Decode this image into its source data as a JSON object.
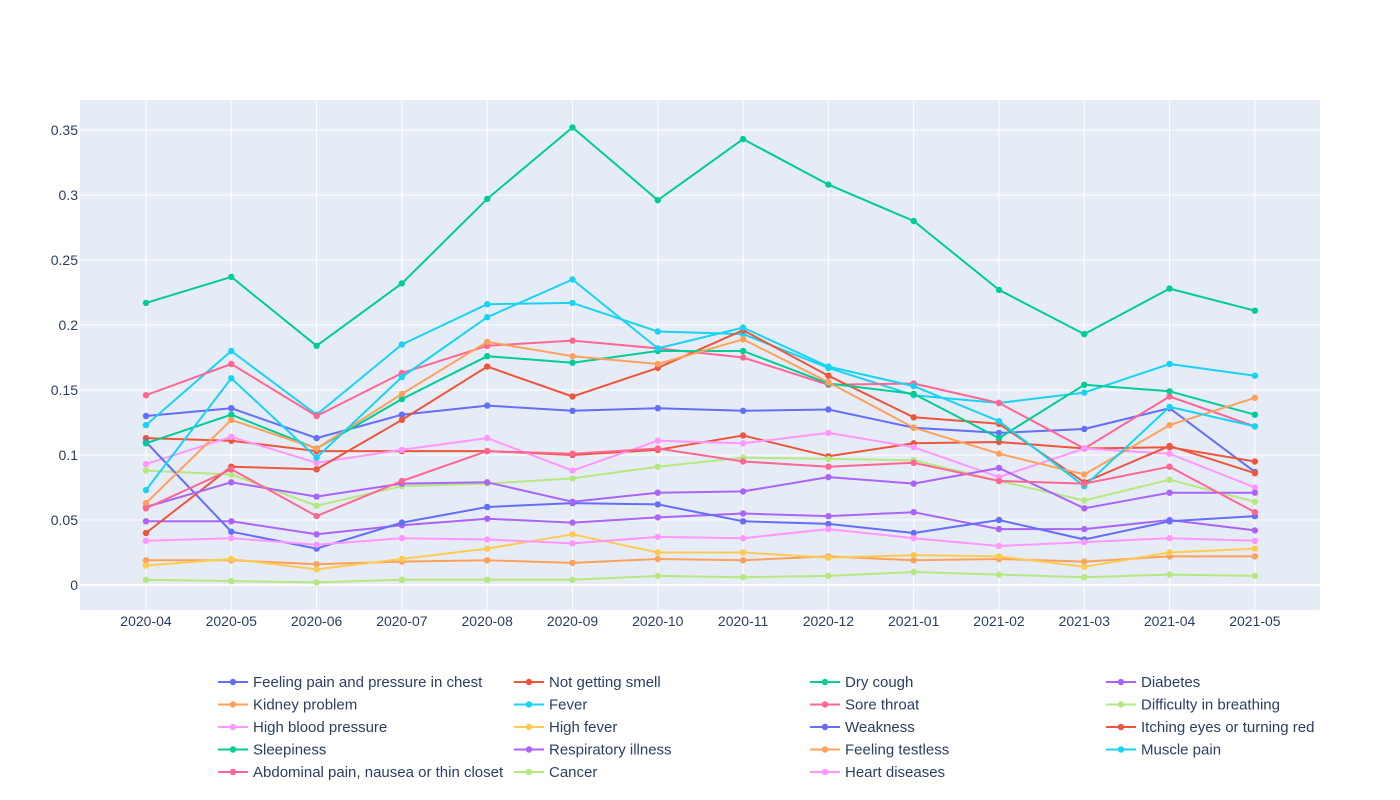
{
  "chart_data": {
    "type": "line",
    "title": "",
    "xlabel": "",
    "ylabel": "",
    "ylim": [
      -0.02,
      0.37
    ],
    "grid": true,
    "legend_placement": "bottom",
    "plot_bgcolor": "#E5ECF6",
    "x": [
      "2020-04",
      "2020-05",
      "2020-06",
      "2020-07",
      "2020-08",
      "2020-09",
      "2020-10",
      "2020-11",
      "2020-12",
      "2021-01",
      "2021-02",
      "2021-03",
      "2021-04",
      "2021-05"
    ],
    "y_ticks": [
      {
        "value": 0,
        "label": "0"
      },
      {
        "value": 0.05,
        "label": "0.05"
      },
      {
        "value": 0.1,
        "label": "0.1"
      },
      {
        "value": 0.15,
        "label": "0.15"
      },
      {
        "value": 0.2,
        "label": "0.2"
      },
      {
        "value": 0.25,
        "label": "0.25"
      },
      {
        "value": 0.3,
        "label": "0.3"
      },
      {
        "value": 0.35,
        "label": "0.35"
      }
    ],
    "series": [
      {
        "name": "Feeling pain and pressure in chest",
        "color": "#636efa",
        "values": [
          0.13,
          0.136,
          0.113,
          0.131,
          0.138,
          0.134,
          0.136,
          0.134,
          0.135,
          0.121,
          0.117,
          0.12,
          0.136,
          0.087
        ]
      },
      {
        "name": "Not getting smell",
        "color": "#EF553B",
        "values": [
          0.113,
          0.111,
          0.103,
          0.103,
          0.103,
          0.1,
          0.104,
          0.115,
          0.099,
          0.109,
          0.11,
          0.105,
          0.106,
          0.095
        ]
      },
      {
        "name": "Dry cough",
        "color": "#00cc96",
        "values": [
          0.217,
          0.237,
          0.184,
          0.232,
          0.297,
          0.352,
          0.296,
          0.343,
          0.308,
          0.28,
          0.227,
          0.193,
          0.228,
          0.211
        ]
      },
      {
        "name": "Diabetes",
        "color": "#ab63fa",
        "values": [
          0.049,
          0.049,
          0.039,
          0.046,
          0.051,
          0.048,
          0.052,
          0.055,
          0.053,
          0.056,
          0.043,
          0.043,
          0.05,
          0.042
        ]
      },
      {
        "name": "Kidney problem",
        "color": "#FFA15A",
        "values": [
          0.019,
          0.019,
          0.016,
          0.018,
          0.019,
          0.017,
          0.02,
          0.019,
          0.022,
          0.019,
          0.02,
          0.018,
          0.022,
          0.022
        ]
      },
      {
        "name": "Fever",
        "color": "#19d3f3",
        "values": [
          0.123,
          0.18,
          0.131,
          0.185,
          0.216,
          0.217,
          0.195,
          0.193,
          0.167,
          0.146,
          0.14,
          0.148,
          0.17,
          0.161
        ]
      },
      {
        "name": "Sore throat",
        "color": "#FF6692",
        "values": [
          0.146,
          0.17,
          0.13,
          0.163,
          0.184,
          0.188,
          0.182,
          0.175,
          0.154,
          0.155,
          0.14,
          0.105,
          0.145,
          0.122
        ]
      },
      {
        "name": "Difficulty in breathing",
        "color": "#B6E880",
        "values": [
          0.088,
          0.085,
          0.061,
          0.076,
          0.078,
          0.082,
          0.091,
          0.098,
          0.097,
          0.096,
          0.08,
          0.065,
          0.081,
          0.064
        ]
      },
      {
        "name": "High blood pressure",
        "color": "#FF97FF",
        "values": [
          0.093,
          0.114,
          0.094,
          0.104,
          0.113,
          0.088,
          0.111,
          0.109,
          0.117,
          0.106,
          0.083,
          0.105,
          0.101,
          0.075
        ]
      },
      {
        "name": "High fever",
        "color": "#FECB52",
        "values": [
          0.015,
          0.02,
          0.012,
          0.02,
          0.028,
          0.039,
          0.025,
          0.025,
          0.021,
          0.023,
          0.022,
          0.014,
          0.025,
          0.028
        ]
      },
      {
        "name": "Weakness",
        "color": "#636efa",
        "values": [
          0.11,
          0.041,
          0.028,
          0.048,
          0.06,
          0.063,
          0.062,
          0.049,
          0.047,
          0.04,
          0.05,
          0.035,
          0.049,
          0.053
        ]
      },
      {
        "name": "Itching eyes or turning red",
        "color": "#EF553B",
        "values": [
          0.04,
          0.091,
          0.089,
          0.127,
          0.168,
          0.145,
          0.167,
          0.196,
          0.161,
          0.129,
          0.124,
          0.079,
          0.107,
          0.086
        ]
      },
      {
        "name": "Sleepiness",
        "color": "#00cc96",
        "values": [
          0.109,
          0.131,
          0.105,
          0.143,
          0.176,
          0.171,
          0.18,
          0.18,
          0.155,
          0.147,
          0.113,
          0.154,
          0.149,
          0.131
        ]
      },
      {
        "name": "Respiratory illness",
        "color": "#ab63fa",
        "values": [
          0.06,
          0.079,
          0.068,
          0.078,
          0.079,
          0.064,
          0.071,
          0.072,
          0.083,
          0.078,
          0.09,
          0.059,
          0.071,
          0.071
        ]
      },
      {
        "name": "Feeling testless",
        "color": "#FFA15A",
        "values": [
          0.063,
          0.127,
          0.105,
          0.147,
          0.187,
          0.176,
          0.17,
          0.189,
          0.156,
          0.121,
          0.101,
          0.085,
          0.123,
          0.144
        ]
      },
      {
        "name": "Muscle pain",
        "color": "#19d3f3",
        "values": [
          0.073,
          0.159,
          0.098,
          0.16,
          0.206,
          0.235,
          0.182,
          0.198,
          0.168,
          0.153,
          0.126,
          0.076,
          0.137,
          0.122
        ]
      },
      {
        "name": "Abdominal pain, nausea or thin closet",
        "color": "#FF6692",
        "values": [
          0.059,
          0.089,
          0.053,
          0.08,
          0.103,
          0.101,
          0.105,
          0.095,
          0.091,
          0.094,
          0.08,
          0.078,
          0.091,
          0.056
        ]
      },
      {
        "name": "Cancer",
        "color": "#B6E880",
        "values": [
          0.004,
          0.003,
          0.002,
          0.004,
          0.004,
          0.004,
          0.007,
          0.006,
          0.007,
          0.01,
          0.008,
          0.006,
          0.008,
          0.007
        ]
      },
      {
        "name": "Heart diseases",
        "color": "#FF97FF",
        "values": [
          0.034,
          0.036,
          0.031,
          0.036,
          0.035,
          0.032,
          0.037,
          0.036,
          0.043,
          0.036,
          0.03,
          0.033,
          0.036,
          0.034
        ]
      }
    ]
  }
}
